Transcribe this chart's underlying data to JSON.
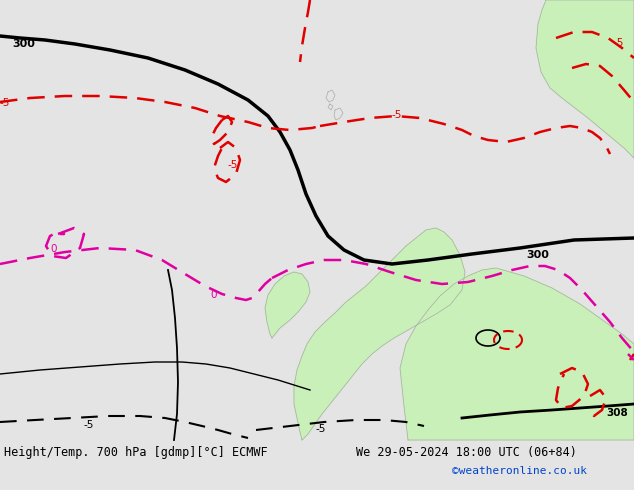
{
  "title_left": "Height/Temp. 700 hPa [gdmp][°C] ECMWF",
  "title_right": "We 29-05-2024 18:00 UTC (06+84)",
  "credit": "©weatheronline.co.uk",
  "bg_color": "#e4e4e4",
  "land_color": "#c8f0b8",
  "border_color": "#aaaaaa",
  "black_color": "#000000",
  "red_color": "#e00000",
  "magenta_color": "#e000a0",
  "credit_color": "#0044cc",
  "figsize": [
    6.34,
    4.9
  ],
  "dpi": 100
}
